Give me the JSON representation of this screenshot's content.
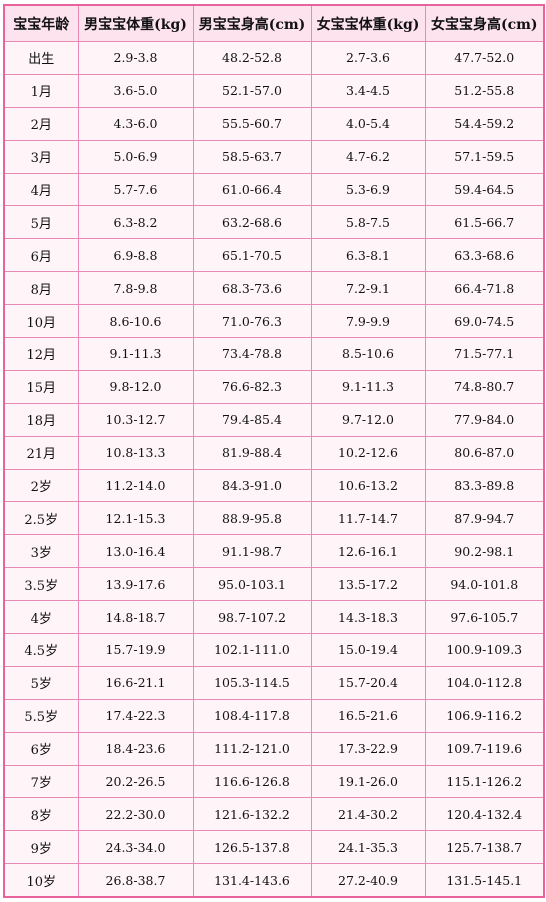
{
  "table": {
    "headers": [
      "宝宝年龄",
      "男宝宝体重(kg)",
      "男宝宝身高(cm)",
      "女宝宝体重(kg)",
      "女宝宝身高(cm)"
    ],
    "rows": [
      [
        "出生",
        "2.9-3.8",
        "48.2-52.8",
        "2.7-3.6",
        "47.7-52.0"
      ],
      [
        "1月",
        "3.6-5.0",
        "52.1-57.0",
        "3.4-4.5",
        "51.2-55.8"
      ],
      [
        "2月",
        "4.3-6.0",
        "55.5-60.7",
        "4.0-5.4",
        "54.4-59.2"
      ],
      [
        "3月",
        "5.0-6.9",
        "58.5-63.7",
        "4.7-6.2",
        "57.1-59.5"
      ],
      [
        "4月",
        "5.7-7.6",
        "61.0-66.4",
        "5.3-6.9",
        "59.4-64.5"
      ],
      [
        "5月",
        "6.3-8.2",
        "63.2-68.6",
        "5.8-7.5",
        "61.5-66.7"
      ],
      [
        "6月",
        "6.9-8.8",
        "65.1-70.5",
        "6.3-8.1",
        "63.3-68.6"
      ],
      [
        "8月",
        "7.8-9.8",
        "68.3-73.6",
        "7.2-9.1",
        "66.4-71.8"
      ],
      [
        "10月",
        "8.6-10.6",
        "71.0-76.3",
        "7.9-9.9",
        "69.0-74.5"
      ],
      [
        "12月",
        "9.1-11.3",
        "73.4-78.8",
        "8.5-10.6",
        "71.5-77.1"
      ],
      [
        "15月",
        "9.8-12.0",
        "76.6-82.3",
        "9.1-11.3",
        "74.8-80.7"
      ],
      [
        "18月",
        "10.3-12.7",
        "79.4-85.4",
        "9.7-12.0",
        "77.9-84.0"
      ],
      [
        "21月",
        "10.8-13.3",
        "81.9-88.4",
        "10.2-12.6",
        "80.6-87.0"
      ],
      [
        "2岁",
        "11.2-14.0",
        "84.3-91.0",
        "10.6-13.2",
        "83.3-89.8"
      ],
      [
        "2.5岁",
        "12.1-15.3",
        "88.9-95.8",
        "11.7-14.7",
        "87.9-94.7"
      ],
      [
        "3岁",
        "13.0-16.4",
        "91.1-98.7",
        "12.6-16.1",
        "90.2-98.1"
      ],
      [
        "3.5岁",
        "13.9-17.6",
        "95.0-103.1",
        "13.5-17.2",
        "94.0-101.8"
      ],
      [
        "4岁",
        "14.8-18.7",
        "98.7-107.2",
        "14.3-18.3",
        "97.6-105.7"
      ],
      [
        "4.5岁",
        "15.7-19.9",
        "102.1-111.0",
        "15.0-19.4",
        "100.9-109.3"
      ],
      [
        "5岁",
        "16.6-21.1",
        "105.3-114.5",
        "15.7-20.4",
        "104.0-112.8"
      ],
      [
        "5.5岁",
        "17.4-22.3",
        "108.4-117.8",
        "16.5-21.6",
        "106.9-116.2"
      ],
      [
        "6岁",
        "18.4-23.6",
        "111.2-121.0",
        "17.3-22.9",
        "109.7-119.6"
      ],
      [
        "7岁",
        "20.2-26.5",
        "116.6-126.8",
        "19.1-26.0",
        "115.1-126.2"
      ],
      [
        "8岁",
        "22.2-30.0",
        "121.6-132.2",
        "21.4-30.2",
        "120.4-132.4"
      ],
      [
        "9岁",
        "24.3-34.0",
        "126.5-137.8",
        "24.1-35.3",
        "125.7-138.7"
      ],
      [
        "10岁",
        "26.8-38.7",
        "131.4-143.6",
        "27.2-40.9",
        "131.5-145.1"
      ]
    ]
  },
  "colors": {
    "border": "#e8639b",
    "header_bg": "#fde3ee",
    "cell_bg": "#fff5f8"
  }
}
